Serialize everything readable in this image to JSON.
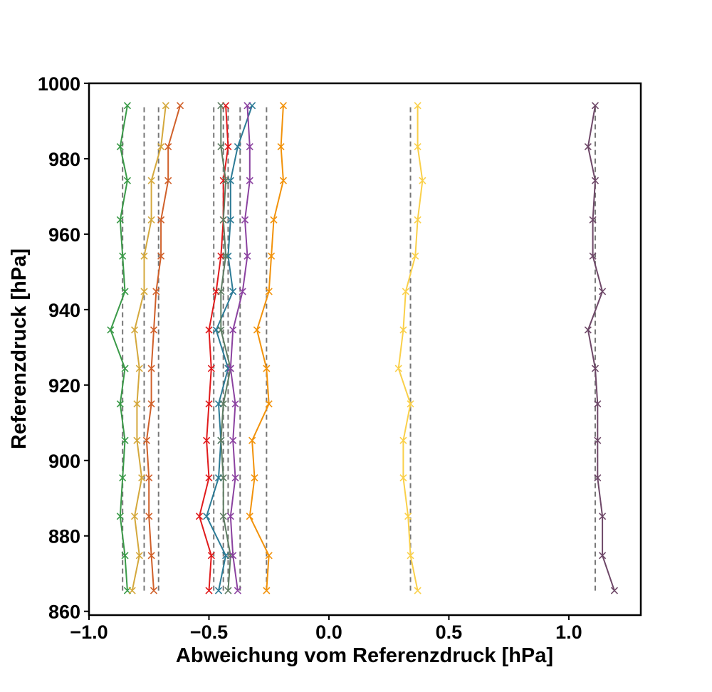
{
  "chart_data": {
    "type": "line",
    "title": "",
    "xlabel": "Abweichung vom Referenzdruck [hPa]",
    "ylabel": "Referenzdruck [hPa]",
    "xlim": [
      -1.0,
      1.3
    ],
    "ylim": [
      859,
      1000
    ],
    "xticks": [
      {
        "value": -1.0,
        "label": "−1.0"
      },
      {
        "value": -0.5,
        "label": "−0.5"
      },
      {
        "value": 0.0,
        "label": "0.0"
      },
      {
        "value": 0.5,
        "label": "0.5"
      },
      {
        "value": 1.0,
        "label": "1.0"
      }
    ],
    "yticks": [
      {
        "value": 860,
        "label": "860"
      },
      {
        "value": 880,
        "label": "880"
      },
      {
        "value": 900,
        "label": "900"
      },
      {
        "value": 920,
        "label": "920"
      },
      {
        "value": 940,
        "label": "940"
      },
      {
        "value": 960,
        "label": "960"
      },
      {
        "value": 980,
        "label": "980"
      },
      {
        "value": 1000,
        "label": "1000"
      }
    ],
    "grid": false,
    "legend": "none",
    "marker": "x",
    "y": [
      865.5,
      874.8,
      885.2,
      895.4,
      905.3,
      915.0,
      924.4,
      934.6,
      944.8,
      954.2,
      963.8,
      974.2,
      983.2,
      994.1
    ],
    "series": [
      {
        "color": "#3a9a48",
        "mean": -0.86,
        "x": [
          -0.84,
          -0.85,
          -0.87,
          -0.86,
          -0.85,
          -0.87,
          -0.85,
          -0.91,
          -0.85,
          -0.86,
          -0.87,
          -0.84,
          -0.87,
          -0.84
        ]
      },
      {
        "color": "#d4a83c",
        "mean": -0.77,
        "x": [
          -0.82,
          -0.79,
          -0.81,
          -0.78,
          -0.8,
          -0.8,
          -0.79,
          -0.81,
          -0.77,
          -0.77,
          -0.74,
          -0.74,
          -0.7,
          -0.68
        ]
      },
      {
        "color": "#d0602a",
        "mean": -0.71,
        "x": [
          -0.73,
          -0.74,
          -0.75,
          -0.75,
          -0.76,
          -0.74,
          -0.74,
          -0.73,
          -0.72,
          -0.7,
          -0.7,
          -0.67,
          -0.67,
          -0.62
        ]
      },
      {
        "color": "#e01b1c",
        "mean": -0.48,
        "x": [
          -0.5,
          -0.49,
          -0.54,
          -0.5,
          -0.51,
          -0.5,
          -0.49,
          -0.5,
          -0.47,
          -0.45,
          -0.44,
          -0.44,
          -0.42,
          -0.43
        ]
      },
      {
        "color": "#2c7b96",
        "mean": -0.42,
        "x": [
          -0.46,
          -0.43,
          -0.51,
          -0.46,
          -0.45,
          -0.46,
          -0.42,
          -0.47,
          -0.4,
          -0.42,
          -0.41,
          -0.41,
          -0.38,
          -0.32
        ]
      },
      {
        "color": "#5e7d63",
        "mean": -0.44,
        "x": [
          -0.42,
          -0.41,
          -0.44,
          -0.44,
          -0.45,
          -0.44,
          -0.41,
          -0.45,
          -0.45,
          -0.43,
          -0.44,
          -0.43,
          -0.45,
          -0.45
        ]
      },
      {
        "color": "#8b42a0",
        "mean": -0.37,
        "x": [
          -0.38,
          -0.4,
          -0.41,
          -0.39,
          -0.4,
          -0.39,
          -0.41,
          -0.4,
          -0.36,
          -0.34,
          -0.35,
          -0.33,
          -0.33,
          -0.34
        ]
      },
      {
        "color": "#f2920a",
        "mean": -0.26,
        "x": [
          -0.26,
          -0.25,
          -0.33,
          -0.31,
          -0.32,
          -0.25,
          -0.26,
          -0.3,
          -0.25,
          -0.24,
          -0.23,
          -0.19,
          -0.2,
          -0.19
        ]
      },
      {
        "color": "#fad04a",
        "mean": 0.34,
        "x": [
          0.37,
          0.34,
          0.33,
          0.31,
          0.31,
          0.34,
          0.29,
          0.31,
          0.32,
          0.36,
          0.37,
          0.39,
          0.37,
          0.37
        ]
      },
      {
        "color": "#6e4868",
        "mean": 1.11,
        "x": [
          1.19,
          1.14,
          1.14,
          1.12,
          1.12,
          1.12,
          1.11,
          1.08,
          1.14,
          1.1,
          1.1,
          1.11,
          1.08,
          1.11
        ]
      }
    ]
  }
}
